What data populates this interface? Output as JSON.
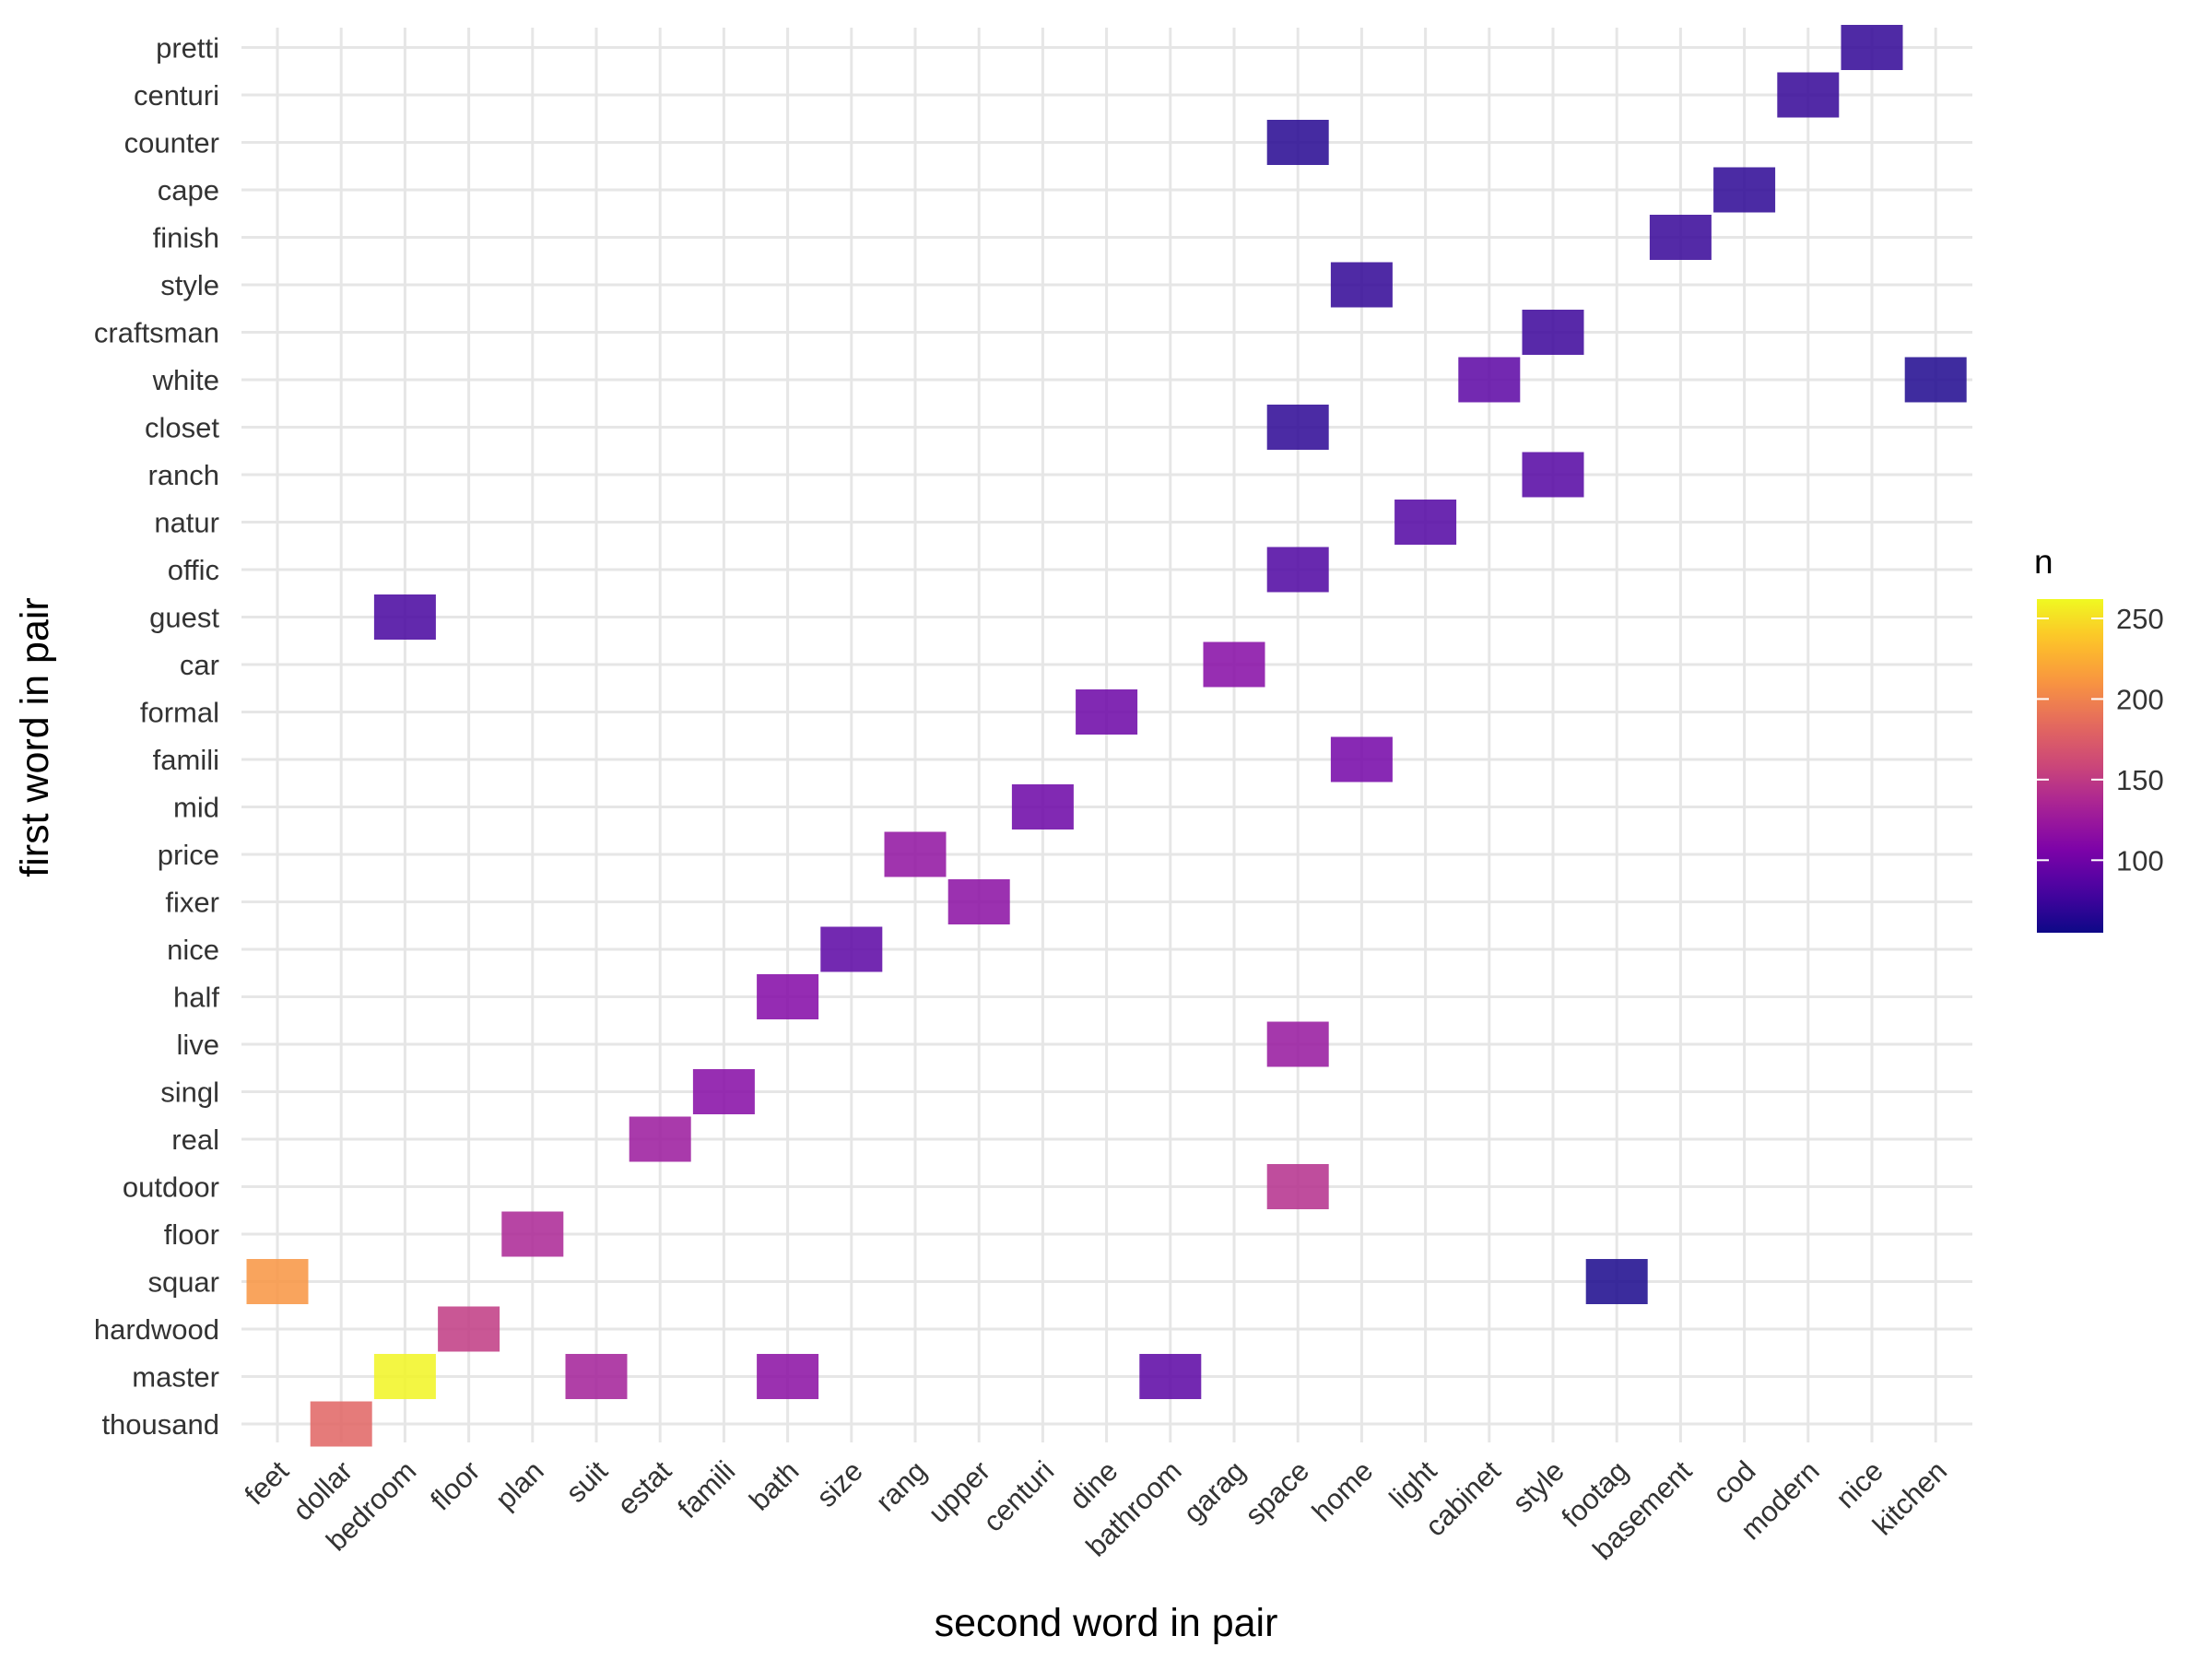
{
  "chart_data": {
    "type": "heatmap",
    "xlabel": "second word in pair",
    "ylabel": "first word in pair",
    "x_categories": [
      "feet",
      "dollar",
      "bedroom",
      "floor",
      "plan",
      "suit",
      "estat",
      "famili",
      "bath",
      "size",
      "rang",
      "upper",
      "centuri",
      "dine",
      "bathroom",
      "garag",
      "space",
      "home",
      "light",
      "cabinet",
      "style",
      "footag",
      "basement",
      "cod",
      "modern",
      "nice",
      "kitchen"
    ],
    "y_categories": [
      "thousand",
      "master",
      "hardwood",
      "squar",
      "floor",
      "outdoor",
      "real",
      "singl",
      "live",
      "half",
      "nice",
      "fixer",
      "price",
      "mid",
      "famili",
      "formal",
      "car",
      "guest",
      "offic",
      "natur",
      "ranch",
      "closet",
      "white",
      "craftsman",
      "style",
      "finish",
      "cape",
      "counter",
      "centuri",
      "pretti"
    ],
    "cells": [
      {
        "x": "dollar",
        "y": "thousand",
        "n": 180
      },
      {
        "x": "bedroom",
        "y": "master",
        "n": 260
      },
      {
        "x": "suit",
        "y": "master",
        "n": 130
      },
      {
        "x": "bath",
        "y": "master",
        "n": 115
      },
      {
        "x": "bathroom",
        "y": "master",
        "n": 90
      },
      {
        "x": "floor",
        "y": "hardwood",
        "n": 150
      },
      {
        "x": "feet",
        "y": "squar",
        "n": 210
      },
      {
        "x": "footag",
        "y": "squar",
        "n": 60
      },
      {
        "x": "plan",
        "y": "floor",
        "n": 135
      },
      {
        "x": "space",
        "y": "outdoor",
        "n": 142
      },
      {
        "x": "estat",
        "y": "real",
        "n": 125
      },
      {
        "x": "famili",
        "y": "singl",
        "n": 112
      },
      {
        "x": "space",
        "y": "live",
        "n": 122
      },
      {
        "x": "bath",
        "y": "half",
        "n": 110
      },
      {
        "x": "size",
        "y": "nice",
        "n": 90
      },
      {
        "x": "upper",
        "y": "fixer",
        "n": 115
      },
      {
        "x": "rang",
        "y": "price",
        "n": 118
      },
      {
        "x": "centuri",
        "y": "mid",
        "n": 98
      },
      {
        "x": "home",
        "y": "famili",
        "n": 102
      },
      {
        "x": "dine",
        "y": "formal",
        "n": 98
      },
      {
        "x": "garag",
        "y": "car",
        "n": 112
      },
      {
        "x": "bedroom",
        "y": "guest",
        "n": 80
      },
      {
        "x": "space",
        "y": "offic",
        "n": 83
      },
      {
        "x": "light",
        "y": "natur",
        "n": 85
      },
      {
        "x": "style",
        "y": "ranch",
        "n": 86
      },
      {
        "x": "space",
        "y": "closet",
        "n": 68
      },
      {
        "x": "cabinet",
        "y": "white",
        "n": 90
      },
      {
        "x": "kitchen",
        "y": "white",
        "n": 62
      },
      {
        "x": "style",
        "y": "craftsman",
        "n": 75
      },
      {
        "x": "home",
        "y": "style",
        "n": 70
      },
      {
        "x": "basement",
        "y": "finish",
        "n": 73
      },
      {
        "x": "cod",
        "y": "cape",
        "n": 68
      },
      {
        "x": "space",
        "y": "counter",
        "n": 65
      },
      {
        "x": "modern",
        "y": "centuri",
        "n": 72
      },
      {
        "x": "nice",
        "y": "pretti",
        "n": 70
      }
    ],
    "legend": {
      "title": "n",
      "ticks": [
        100,
        150,
        200,
        250
      ],
      "range": [
        55,
        262
      ],
      "colormap": "plasma",
      "position": "right"
    },
    "grid": true
  }
}
